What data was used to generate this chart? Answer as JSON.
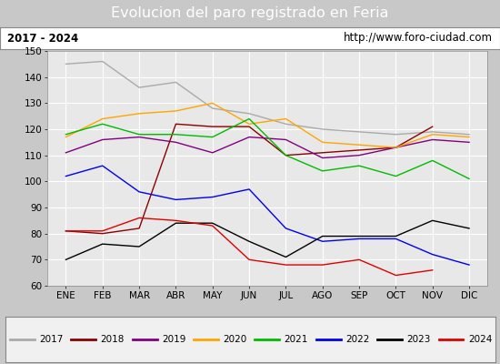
{
  "title": "Evolucion del paro registrado en Feria",
  "subtitle_left": "2017 - 2024",
  "subtitle_right": "http://www.foro-ciudad.com",
  "months": [
    "ENE",
    "FEB",
    "MAR",
    "ABR",
    "MAY",
    "JUN",
    "JUL",
    "AGO",
    "SEP",
    "OCT",
    "NOV",
    "DIC"
  ],
  "ylim": [
    60,
    150
  ],
  "yticks": [
    60,
    70,
    80,
    90,
    100,
    110,
    120,
    130,
    140,
    150
  ],
  "series": {
    "2017": {
      "color": "#aaaaaa",
      "data": [
        145,
        146,
        136,
        138,
        128,
        126,
        122,
        120,
        119,
        118,
        119,
        118
      ]
    },
    "2018": {
      "color": "#8b0000",
      "data": [
        81,
        80,
        82,
        122,
        121,
        121,
        110,
        111,
        112,
        113,
        121,
        null
      ]
    },
    "2019": {
      "color": "#800080",
      "data": [
        111,
        116,
        117,
        115,
        111,
        117,
        116,
        109,
        110,
        113,
        116,
        115
      ]
    },
    "2020": {
      "color": "#ffa500",
      "data": [
        117,
        124,
        126,
        127,
        130,
        122,
        124,
        115,
        114,
        113,
        118,
        117
      ]
    },
    "2021": {
      "color": "#00bb00",
      "data": [
        118,
        122,
        118,
        118,
        117,
        124,
        110,
        104,
        106,
        102,
        108,
        101
      ]
    },
    "2022": {
      "color": "#0000ee",
      "data": [
        102,
        106,
        96,
        93,
        94,
        97,
        82,
        77,
        78,
        78,
        72,
        68
      ]
    },
    "2023": {
      "color": "#000000",
      "data": [
        70,
        76,
        75,
        84,
        84,
        77,
        71,
        79,
        79,
        79,
        85,
        82
      ]
    },
    "2024": {
      "color": "#dd0000",
      "data": [
        81,
        81,
        86,
        85,
        83,
        70,
        68,
        68,
        70,
        64,
        66,
        null
      ]
    }
  },
  "title_bg_color": "#4e7fbd",
  "title_text_color": "#ffffff",
  "subtitle_bg_color": "#ffffff",
  "plot_bg_color": "#e8e8e8",
  "grid_color": "#ffffff",
  "legend_bg_color": "#f0f0f0",
  "fig_bg_color": "#c8c8c8"
}
